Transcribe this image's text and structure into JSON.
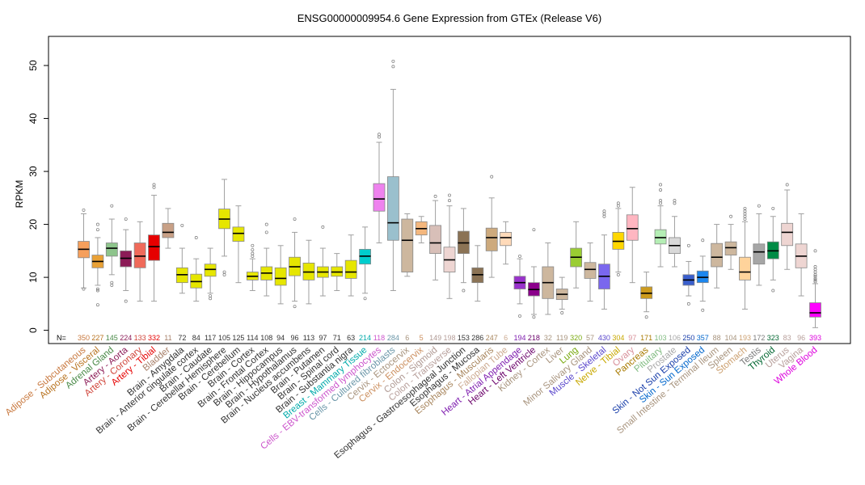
{
  "chart_data": {
    "type": "box",
    "title": "ENSG00000009954.6 Gene Expression from GTEx (Release V6)",
    "ylabel": "RPKM",
    "xlabel": "",
    "ylim": [
      -2.5,
      55.5
    ],
    "yticks": [
      0,
      10,
      20,
      30,
      40,
      50
    ],
    "n_label": "N=",
    "grid": false,
    "categories": [
      {
        "name": "Adipose - Subcutaneous",
        "n": "350",
        "color": "#F59F5C",
        "text_color": "#C8783E",
        "q1": 13.7,
        "median": 15.3,
        "q3": 16.8,
        "wl": 8.0,
        "wh": 22.0,
        "outliers": [
          22.7,
          7.8
        ]
      },
      {
        "name": "Adipose - Visceral",
        "n": "227",
        "color": "#E9A136",
        "text_color": "#B8731F",
        "q1": 11.8,
        "median": 13.0,
        "q3": 14.2,
        "wl": 8.5,
        "wh": 17.5,
        "outliers": [
          20.0,
          19.0,
          7.8,
          7.5,
          4.8
        ]
      },
      {
        "name": "Adrenal Gland",
        "n": "145",
        "color": "#8EC58C",
        "text_color": "#4A8A48",
        "q1": 14.0,
        "median": 15.5,
        "q3": 16.5,
        "wl": 10.5,
        "wh": 21.0,
        "outliers": [
          23.5,
          9.0,
          8.5
        ]
      },
      {
        "name": "Artery - Aorta",
        "n": "224",
        "color": "#8C1B57",
        "text_color": "#8C1B57",
        "q1": 12.0,
        "median": 13.6,
        "q3": 15.0,
        "wl": 7.5,
        "wh": 19.0,
        "outliers": [
          21.0,
          5.5
        ]
      },
      {
        "name": "Artery - Coronary",
        "n": "133",
        "color": "#F06A5A",
        "text_color": "#D0453A",
        "q1": 11.8,
        "median": 14.0,
        "q3": 16.5,
        "wl": 5.5,
        "wh": 20.5,
        "outliers": []
      },
      {
        "name": "Artery - Tibial",
        "n": "332",
        "color": "#E60000",
        "text_color": "#E60000",
        "q1": 13.2,
        "median": 15.8,
        "q3": 18.0,
        "wl": 5.5,
        "wh": 25.5,
        "outliers": [
          27.5,
          27.0
        ]
      },
      {
        "name": "Bladder",
        "n": "11",
        "color": "#C8A086",
        "text_color": "#A8806A",
        "q1": 17.5,
        "median": 18.5,
        "q3": 20.2,
        "wl": 15.5,
        "wh": 23.0,
        "outliers": []
      },
      {
        "name": "Brain - Amygdala",
        "n": "72",
        "color": "#E6E600",
        "text_color": "#333333",
        "q1": 9.0,
        "median": 10.5,
        "q3": 11.8,
        "wl": 7.0,
        "wh": 15.5,
        "outliers": [
          19.8
        ]
      },
      {
        "name": "Brain - Anterior cingulate cortex",
        "n": "84",
        "color": "#E6E600",
        "text_color": "#333333",
        "q1": 8.0,
        "median": 9.2,
        "q3": 10.6,
        "wl": 5.5,
        "wh": 13.5,
        "outliers": [
          17.5
        ]
      },
      {
        "name": "Brain - Caudate",
        "n": "117",
        "color": "#E6E600",
        "text_color": "#333333",
        "q1": 10.2,
        "median": 11.5,
        "q3": 12.5,
        "wl": 7.0,
        "wh": 15.5,
        "outliers": [
          6.5,
          6.0
        ]
      },
      {
        "name": "Brain - Cerebellar Hemisphere",
        "n": "105",
        "color": "#E6E600",
        "text_color": "#333333",
        "q1": 19.2,
        "median": 21.0,
        "q3": 22.9,
        "wl": 14.0,
        "wh": 28.5,
        "outliers": [
          11.0,
          10.5
        ]
      },
      {
        "name": "Brain - Cerebellum",
        "n": "125",
        "color": "#E6E600",
        "text_color": "#333333",
        "q1": 16.8,
        "median": 18.3,
        "q3": 19.5,
        "wl": 9.0,
        "wh": 23.5,
        "outliers": []
      },
      {
        "name": "Brain - Cortex",
        "n": "114",
        "color": "#E6E600",
        "text_color": "#333333",
        "q1": 9.5,
        "median": 10.2,
        "q3": 11.0,
        "wl": 7.5,
        "wh": 13.5,
        "outliers": [
          16.0,
          15.2,
          14.5,
          14.0
        ]
      },
      {
        "name": "Brain - Frontal Cortex",
        "n": "108",
        "color": "#E6E600",
        "text_color": "#333333",
        "q1": 9.5,
        "median": 10.8,
        "q3": 12.0,
        "wl": 6.5,
        "wh": 15.5,
        "outliers": [
          20.0,
          18.5
        ]
      },
      {
        "name": "Brain - Hippocampus",
        "n": "94",
        "color": "#E6E600",
        "text_color": "#333333",
        "q1": 8.5,
        "median": 9.8,
        "q3": 11.8,
        "wl": 5.0,
        "wh": 16.0,
        "outliers": []
      },
      {
        "name": "Brain - Hypothalamus",
        "n": "96",
        "color": "#E6E600",
        "text_color": "#333333",
        "q1": 10.3,
        "median": 12.0,
        "q3": 13.8,
        "wl": 5.5,
        "wh": 18.5,
        "outliers": [
          21.0,
          4.5
        ]
      },
      {
        "name": "Brain - Nucleus accumbens",
        "n": "113",
        "color": "#E6E600",
        "text_color": "#333333",
        "q1": 9.5,
        "median": 11.0,
        "q3": 12.7,
        "wl": 5.0,
        "wh": 17.0,
        "outliers": []
      },
      {
        "name": "Brain - Putamen",
        "n": "97",
        "color": "#E6E600",
        "text_color": "#333333",
        "q1": 10.0,
        "median": 11.0,
        "q3": 12.0,
        "wl": 6.5,
        "wh": 15.5,
        "outliers": [
          19.5
        ]
      },
      {
        "name": "Brain - Spinal cord",
        "n": "71",
        "color": "#E6E600",
        "text_color": "#333333",
        "q1": 10.2,
        "median": 11.0,
        "q3": 12.0,
        "wl": 7.5,
        "wh": 14.5,
        "outliers": []
      },
      {
        "name": "Brain - Substantia nigra",
        "n": "63",
        "color": "#E6E600",
        "text_color": "#333333",
        "q1": 9.8,
        "median": 11.0,
        "q3": 13.2,
        "wl": 6.5,
        "wh": 18.0,
        "outliers": []
      },
      {
        "name": "Breast - Mammary Tissue",
        "n": "214",
        "color": "#00CDCD",
        "text_color": "#00AAAA",
        "q1": 12.5,
        "median": 14.0,
        "q3": 15.3,
        "wl": 7.0,
        "wh": 19.5,
        "outliers": [
          6.0
        ]
      },
      {
        "name": "Cells - EBV-transformed lymphocytes",
        "n": "118",
        "color": "#EE82EE",
        "text_color": "#CC55CC",
        "q1": 22.5,
        "median": 24.8,
        "q3": 27.7,
        "wl": 16.5,
        "wh": 35.5,
        "outliers": [
          37.0,
          36.5
        ]
      },
      {
        "name": "Cells - Cultured fibroblasts",
        "n": "284",
        "color": "#9AC0CD",
        "text_color": "#6A96A8",
        "q1": 17.0,
        "median": 20.3,
        "q3": 29.0,
        "wl": 7.5,
        "wh": 45.5,
        "outliers": [
          50.8,
          49.8
        ]
      },
      {
        "name": "Cervix - Ectocervix",
        "n": "6",
        "color": "#CDB79E",
        "text_color": "#A8947E",
        "q1": 11.0,
        "median": 17.0,
        "q3": 21.0,
        "wl": 10.2,
        "wh": 22.0,
        "outliers": []
      },
      {
        "name": "Cervix - Endocervix",
        "n": "5",
        "color": "#F4B77D",
        "text_color": "#CC9060",
        "q1": 18.0,
        "median": 19.2,
        "q3": 20.5,
        "wl": 16.5,
        "wh": 21.5,
        "outliers": []
      },
      {
        "name": "Colon - Sigmoid",
        "n": "149",
        "color": "#D8BFB8",
        "text_color": "#B09A94",
        "q1": 14.5,
        "median": 16.5,
        "q3": 19.8,
        "wl": 9.5,
        "wh": 24.5,
        "outliers": [
          25.3
        ]
      },
      {
        "name": "Colon - Transverse",
        "n": "198",
        "color": "#EED5D2",
        "text_color": "#B8A09C",
        "q1": 11.0,
        "median": 13.3,
        "q3": 15.7,
        "wl": 6.0,
        "wh": 23.5,
        "outliers": [
          25.5,
          24.5
        ]
      },
      {
        "name": "Esophagus - Gastroesophageal Junction",
        "n": "153",
        "color": "#8B7355",
        "text_color": "#333333",
        "q1": 14.5,
        "median": 16.5,
        "q3": 18.7,
        "wl": 9.0,
        "wh": 23.0,
        "outliers": [
          7.5
        ]
      },
      {
        "name": "Esophagus - Mucosa",
        "n": "286",
        "color": "#8B7355",
        "text_color": "#333333",
        "q1": 9.0,
        "median": 10.5,
        "q3": 11.8,
        "wl": 5.5,
        "wh": 16.0,
        "outliers": []
      },
      {
        "name": "Esophagus - Muscularis",
        "n": "247",
        "color": "#CDAA7D",
        "text_color": "#A8865E",
        "q1": 15.0,
        "median": 17.5,
        "q3": 19.3,
        "wl": 10.0,
        "wh": 25.0,
        "outliers": [
          29.0
        ]
      },
      {
        "name": "Fallopian Tube",
        "n": "6",
        "color": "#FFDAB9",
        "text_color": "#CCAA90",
        "q1": 16.0,
        "median": 17.5,
        "q3": 18.5,
        "wl": 12.5,
        "wh": 20.5,
        "outliers": []
      },
      {
        "name": "Heart - Atrial Appendage",
        "n": "194",
        "color": "#9932CC",
        "text_color": "#8020B0",
        "q1": 7.8,
        "median": 9.0,
        "q3": 10.2,
        "wl": 5.0,
        "wh": 13.5,
        "outliers": [
          14.0,
          2.7
        ]
      },
      {
        "name": "Heart - Left Ventricle",
        "n": "218",
        "color": "#8B008B",
        "text_color": "#6A006A",
        "q1": 6.5,
        "median": 7.7,
        "q3": 9.0,
        "wl": 3.0,
        "wh": 12.0,
        "outliers": [
          19.0,
          2.5
        ]
      },
      {
        "name": "Kidney - Cortex",
        "n": "32",
        "color": "#CDB79E",
        "text_color": "#A8947E",
        "q1": 6.0,
        "median": 9.0,
        "q3": 12.0,
        "wl": 3.0,
        "wh": 16.5,
        "outliers": []
      },
      {
        "name": "Liver",
        "n": "119",
        "color": "#CDB79E",
        "text_color": "#A8947E",
        "q1": 5.8,
        "median": 6.8,
        "q3": 7.8,
        "wl": 4.0,
        "wh": 10.0,
        "outliers": [
          3.3
        ]
      },
      {
        "name": "Lung",
        "n": "320",
        "color": "#9ACD32",
        "text_color": "#7AAA10",
        "q1": 12.0,
        "median": 13.8,
        "q3": 15.5,
        "wl": 8.0,
        "wh": 20.5,
        "outliers": []
      },
      {
        "name": "Minor Salivary Gland",
        "n": "57",
        "color": "#CDB79E",
        "text_color": "#A8947E",
        "q1": 9.8,
        "median": 11.5,
        "q3": 12.8,
        "wl": 5.5,
        "wh": 16.5,
        "outliers": []
      },
      {
        "name": "Muscle - Skeletal",
        "n": "430",
        "color": "#7A67EE",
        "text_color": "#5A47CC",
        "q1": 7.8,
        "median": 10.2,
        "q3": 12.5,
        "wl": 4.0,
        "wh": 18.0,
        "outliers": [
          22.5,
          22.0,
          21.5
        ]
      },
      {
        "name": "Nerve - Tibial",
        "n": "304",
        "color": "#FFD700",
        "text_color": "#C8A800",
        "q1": 15.3,
        "median": 16.8,
        "q3": 18.5,
        "wl": 11.0,
        "wh": 23.0,
        "outliers": [
          24.0,
          23.5,
          10.5
        ]
      },
      {
        "name": "Ovary",
        "n": "97",
        "color": "#FFB6C1",
        "text_color": "#D8909A",
        "q1": 17.0,
        "median": 19.2,
        "q3": 21.8,
        "wl": 9.0,
        "wh": 27.0,
        "outliers": []
      },
      {
        "name": "Pancreas",
        "n": "171",
        "color": "#CD9B1D",
        "text_color": "#A87A00",
        "q1": 6.0,
        "median": 7.0,
        "q3": 8.2,
        "wl": 3.5,
        "wh": 11.0,
        "outliers": [
          2.5
        ]
      },
      {
        "name": "Pituitary",
        "n": "103",
        "color": "#B4EEB4",
        "text_color": "#80BB80",
        "q1": 16.3,
        "median": 17.5,
        "q3": 19.0,
        "wl": 12.0,
        "wh": 23.5,
        "outliers": [
          27.5,
          26.5,
          24.5,
          24.0
        ]
      },
      {
        "name": "Prostate",
        "n": "106",
        "color": "#D9D9D9",
        "text_color": "#A8A8A8",
        "q1": 14.5,
        "median": 16.0,
        "q3": 17.5,
        "wl": 12.0,
        "wh": 21.5,
        "outliers": [
          24.5,
          24.0
        ]
      },
      {
        "name": "Skin - Not Sun Exposed",
        "n": "250",
        "color": "#3A5FCD",
        "text_color": "#1A3FAA",
        "q1": 8.5,
        "median": 9.5,
        "q3": 10.5,
        "wl": 6.5,
        "wh": 13.0,
        "outliers": [
          16.0,
          5.0
        ]
      },
      {
        "name": "Skin - Sun Exposed",
        "n": "357",
        "color": "#1C86EE",
        "text_color": "#0066CC",
        "q1": 9.0,
        "median": 10.0,
        "q3": 11.2,
        "wl": 5.5,
        "wh": 14.0,
        "outliers": [
          17.0,
          3.8
        ]
      },
      {
        "name": "Small Intestine - Terminal Ileum",
        "n": "88",
        "color": "#CDB79E",
        "text_color": "#A8947E",
        "q1": 12.0,
        "median": 13.8,
        "q3": 16.4,
        "wl": 8.0,
        "wh": 20.0,
        "outliers": []
      },
      {
        "name": "Spleen",
        "n": "104",
        "color": "#CDB79E",
        "text_color": "#A8947E",
        "q1": 14.2,
        "median": 15.6,
        "q3": 16.7,
        "wl": 11.5,
        "wh": 20.0,
        "outliers": [
          21.5
        ]
      },
      {
        "name": "Stomach",
        "n": "193",
        "color": "#FFD39B",
        "text_color": "#CCA070",
        "q1": 9.5,
        "median": 11.0,
        "q3": 13.8,
        "wl": 4.0,
        "wh": 20.5,
        "outliers": [
          23.0,
          22.5,
          22.0,
          21.5,
          21.0
        ]
      },
      {
        "name": "Testis",
        "n": "172",
        "color": "#A6A6A6",
        "text_color": "#7A7A7A",
        "q1": 12.5,
        "median": 14.8,
        "q3": 16.3,
        "wl": 8.5,
        "wh": 22.0,
        "outliers": [
          23.5
        ]
      },
      {
        "name": "Thyroid",
        "n": "323",
        "color": "#008B45",
        "text_color": "#006630",
        "q1": 13.5,
        "median": 15.0,
        "q3": 16.7,
        "wl": 9.5,
        "wh": 21.5,
        "outliers": [
          23.0,
          7.5
        ]
      },
      {
        "name": "Uterus",
        "n": "83",
        "color": "#EED5D2",
        "text_color": "#B8A09C",
        "q1": 16.0,
        "median": 18.5,
        "q3": 20.2,
        "wl": 11.5,
        "wh": 26.5,
        "outliers": [
          27.5
        ]
      },
      {
        "name": "Vagina",
        "n": "96",
        "color": "#EED5D2",
        "text_color": "#B8A09C",
        "q1": 11.8,
        "median": 14.0,
        "q3": 16.3,
        "wl": 6.5,
        "wh": 22.0,
        "outliers": []
      },
      {
        "name": "Whole Blood",
        "n": "393",
        "color": "#FF00FF",
        "text_color": "#DD00DD",
        "q1": 2.5,
        "median": 3.3,
        "q3": 5.2,
        "wl": 0.5,
        "wh": 8.8,
        "outliers": [
          15.0,
          12.0,
          11.5,
          11.0,
          10.5,
          10.2,
          9.8,
          9.5,
          9.2
        ]
      }
    ]
  }
}
